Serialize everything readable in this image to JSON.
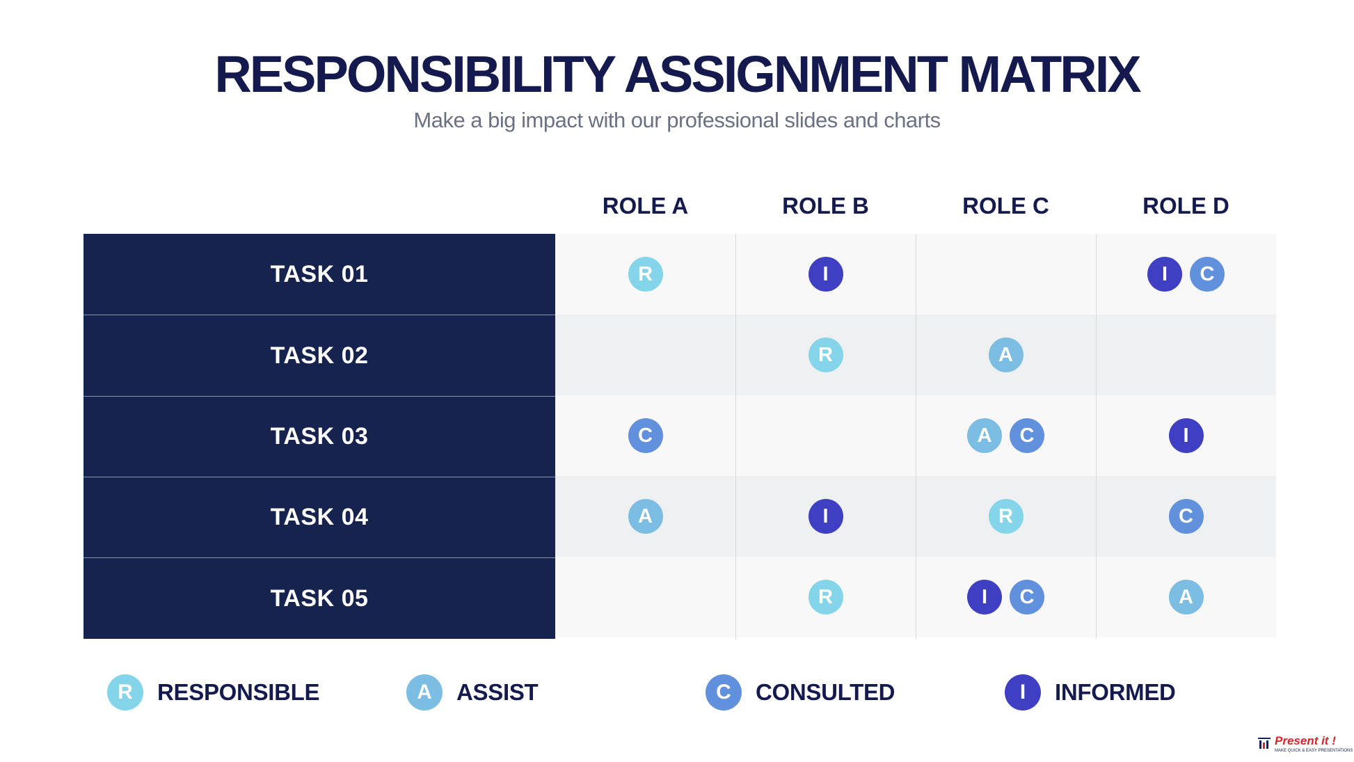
{
  "title": "RESPONSIBILITY ASSIGNMENT MATRIX",
  "subtitle": "Make a big impact with our professional slides and charts",
  "roles": [
    "ROLE A",
    "ROLE B",
    "ROLE C",
    "ROLE D"
  ],
  "tasks": [
    {
      "name": "TASK 01",
      "cells": [
        [
          "R"
        ],
        [
          "I"
        ],
        [],
        [
          "I",
          "C"
        ]
      ]
    },
    {
      "name": "TASK 02",
      "cells": [
        [],
        [
          "R"
        ],
        [
          "A"
        ],
        []
      ]
    },
    {
      "name": "TASK 03",
      "cells": [
        [
          "C"
        ],
        [],
        [
          "A",
          "C"
        ],
        [
          "I"
        ]
      ]
    },
    {
      "name": "TASK 04",
      "cells": [
        [
          "A"
        ],
        [
          "I"
        ],
        [
          "R"
        ],
        [
          "C"
        ]
      ]
    },
    {
      "name": "TASK 05",
      "cells": [
        [],
        [
          "R"
        ],
        [
          "I",
          "C"
        ],
        [
          "A"
        ]
      ]
    }
  ],
  "legend": [
    {
      "code": "R",
      "label": "RESPONSIBLE"
    },
    {
      "code": "A",
      "label": "ASSIST"
    },
    {
      "code": "C",
      "label": "CONSULTED"
    },
    {
      "code": "I",
      "label": "INFORMED"
    }
  ],
  "badge_colors": {
    "R": "#85d5ea",
    "A": "#7cbde3",
    "C": "#6191dc",
    "I": "#3f3fc4"
  },
  "colors": {
    "title": "#141a4e",
    "task_column": "#16234f",
    "row_light": "#f8f8f9",
    "row_dark": "#eff0f2"
  },
  "brand": {
    "name": "Present it !",
    "tagline": "MAKE QUICK & EASY PRESENTATIONS"
  }
}
